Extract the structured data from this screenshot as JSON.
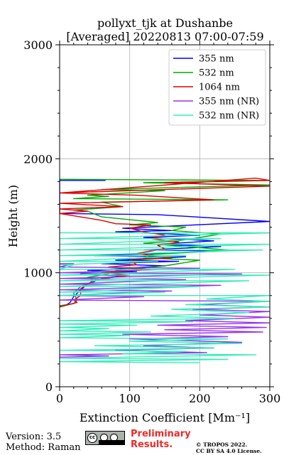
{
  "title": {
    "line1": "pollyxt_tjk at Dushanbe",
    "line2": "[Averaged] 20220813 07:00-07:59"
  },
  "footer": {
    "version": "Version: 3.5",
    "method": "Method: Raman",
    "license_badge": "CC BY SA",
    "preliminary": "Preliminary Results.",
    "copyright": "© TROPOS 2022.",
    "license": "CC BY SA 4.0 License."
  },
  "chart_data": {
    "type": "line",
    "title": "pollyxt_tjk at Dushanbe [Averaged] 20220813 07:00-07:59",
    "xlabel": "Extinction Coefficient [Mm⁻¹]",
    "ylabel": "Height (m)",
    "xlim": [
      0,
      300
    ],
    "ylim": [
      0,
      3000
    ],
    "xticks": [
      "0",
      "100",
      "200",
      "300"
    ],
    "yticks": [
      "0",
      "1000",
      "2000",
      "3000"
    ],
    "grid": true,
    "legend_position": "top-right",
    "series": [
      {
        "name": "355 nm",
        "color": "#0000ff",
        "points": [
          [
            0,
            1810
          ],
          [
            65,
            1810
          ],
          [
            0,
            1810
          ],
          [
            0,
            1520
          ],
          [
            140,
            1510
          ],
          [
            300,
            1450
          ],
          [
            90,
            1390
          ],
          [
            160,
            1370
          ],
          [
            80,
            1360
          ],
          [
            200,
            1330
          ],
          [
            120,
            1310
          ],
          [
            220,
            1280
          ],
          [
            140,
            1250
          ],
          [
            230,
            1230
          ],
          [
            120,
            1200
          ],
          [
            230,
            1190
          ],
          [
            50,
            1150
          ],
          [
            180,
            1140
          ],
          [
            80,
            1110
          ],
          [
            170,
            1100
          ],
          [
            60,
            1080
          ],
          [
            150,
            1060
          ],
          [
            40,
            1020
          ],
          [
            110,
            1010
          ],
          [
            30,
            990
          ],
          [
            90,
            970
          ],
          [
            60,
            950
          ],
          [
            40,
            900
          ],
          [
            30,
            850
          ],
          [
            20,
            790
          ],
          [
            15,
            740
          ],
          [
            10,
            720
          ],
          [
            0,
            710
          ]
        ]
      },
      {
        "name": "532 nm",
        "color": "#00aa00",
        "points": [
          [
            0,
            1820
          ],
          [
            295,
            1810
          ],
          [
            120,
            1790
          ],
          [
            300,
            1770
          ],
          [
            60,
            1730
          ],
          [
            150,
            1720
          ],
          [
            40,
            1680
          ],
          [
            70,
            1670
          ],
          [
            20,
            1650
          ],
          [
            240,
            1640
          ],
          [
            60,
            1620
          ],
          [
            90,
            1580
          ],
          [
            20,
            1550
          ],
          [
            40,
            1540
          ],
          [
            60,
            1490
          ],
          [
            110,
            1460
          ],
          [
            140,
            1440
          ],
          [
            100,
            1420
          ],
          [
            180,
            1400
          ],
          [
            160,
            1370
          ],
          [
            230,
            1340
          ],
          [
            200,
            1310
          ],
          [
            170,
            1280
          ],
          [
            120,
            1260
          ],
          [
            240,
            1200
          ],
          [
            190,
            1180
          ],
          [
            130,
            1160
          ],
          [
            120,
            1130
          ],
          [
            200,
            1110
          ],
          [
            150,
            1060
          ],
          [
            80,
            1020
          ],
          [
            70,
            990
          ],
          [
            40,
            960
          ],
          [
            50,
            930
          ],
          [
            30,
            880
          ],
          [
            20,
            820
          ],
          [
            25,
            760
          ],
          [
            20,
            730
          ],
          [
            0,
            710
          ]
        ]
      },
      {
        "name": "1064 nm",
        "color": "#dd0000",
        "points": [
          [
            0,
            1700
          ],
          [
            280,
            1830
          ],
          [
            300,
            1810
          ],
          [
            150,
            1790
          ],
          [
            300,
            1760
          ],
          [
            0,
            1700
          ],
          [
            110,
            1680
          ],
          [
            220,
            1640
          ],
          [
            0,
            1610
          ],
          [
            90,
            1580
          ],
          [
            0,
            1560
          ],
          [
            40,
            1540
          ],
          [
            0,
            1520
          ],
          [
            60,
            1460
          ],
          [
            80,
            1430
          ],
          [
            130,
            1420
          ],
          [
            100,
            1390
          ],
          [
            120,
            1360
          ],
          [
            150,
            1330
          ],
          [
            130,
            1300
          ],
          [
            170,
            1270
          ],
          [
            140,
            1240
          ],
          [
            150,
            1210
          ],
          [
            110,
            1170
          ],
          [
            160,
            1130
          ],
          [
            100,
            1110
          ],
          [
            110,
            1070
          ],
          [
            70,
            1050
          ],
          [
            130,
            1030
          ],
          [
            60,
            1000
          ],
          [
            100,
            980
          ],
          [
            50,
            940
          ],
          [
            40,
            900
          ],
          [
            30,
            860
          ],
          [
            30,
            800
          ],
          [
            20,
            760
          ],
          [
            25,
            740
          ],
          [
            0,
            700
          ]
        ]
      },
      {
        "name": "355 nm (NR)",
        "color": "#9933ee",
        "points": [
          [
            0,
            1080
          ],
          [
            20,
            1080
          ],
          [
            0,
            1050
          ],
          [
            200,
            1040
          ],
          [
            0,
            1000
          ],
          [
            260,
            990
          ],
          [
            0,
            950
          ],
          [
            180,
            940
          ],
          [
            0,
            900
          ],
          [
            230,
            890
          ],
          [
            0,
            850
          ],
          [
            160,
            840
          ],
          [
            0,
            800
          ],
          [
            120,
            790
          ],
          [
            0,
            760
          ],
          [
            300,
            750
          ],
          [
            200,
            720
          ],
          [
            300,
            700
          ],
          [
            190,
            680
          ],
          [
            300,
            660
          ],
          [
            200,
            630
          ],
          [
            300,
            610
          ],
          [
            180,
            580
          ],
          [
            300,
            560
          ],
          [
            140,
            540
          ],
          [
            295,
            520
          ],
          [
            150,
            500
          ],
          [
            290,
            480
          ],
          [
            90,
            460
          ],
          [
            240,
            440
          ],
          [
            100,
            420
          ],
          [
            260,
            390
          ],
          [
            120,
            360
          ],
          [
            220,
            340
          ],
          [
            80,
            320
          ],
          [
            210,
            300
          ],
          [
            0,
            280
          ],
          [
            70,
            270
          ],
          [
            0,
            260
          ]
        ]
      },
      {
        "name": "532 nm (NR)",
        "color": "#33eebb",
        "points": [
          [
            0,
            1350
          ],
          [
            300,
            1350
          ],
          [
            0,
            1300
          ],
          [
            230,
            1300
          ],
          [
            0,
            1250
          ],
          [
            300,
            1250
          ],
          [
            0,
            1200
          ],
          [
            290,
            1200
          ],
          [
            0,
            1150
          ],
          [
            180,
            1150
          ],
          [
            0,
            1100
          ],
          [
            140,
            1100
          ],
          [
            0,
            1070
          ],
          [
            20,
            1070
          ],
          [
            0,
            1030
          ],
          [
            250,
            1030
          ],
          [
            0,
            980
          ],
          [
            300,
            980
          ],
          [
            0,
            930
          ],
          [
            270,
            930
          ],
          [
            0,
            880
          ],
          [
            200,
            880
          ],
          [
            0,
            830
          ],
          [
            150,
            830
          ],
          [
            0,
            800
          ],
          [
            300,
            800
          ],
          [
            210,
            770
          ],
          [
            300,
            750
          ],
          [
            180,
            720
          ],
          [
            300,
            700
          ],
          [
            160,
            680
          ],
          [
            270,
            650
          ],
          [
            130,
            620
          ],
          [
            250,
            600
          ],
          [
            0,
            580
          ],
          [
            190,
            570
          ],
          [
            0,
            550
          ],
          [
            110,
            540
          ],
          [
            0,
            520
          ],
          [
            70,
            510
          ],
          [
            0,
            490
          ],
          [
            130,
            480
          ],
          [
            0,
            460
          ],
          [
            100,
            450
          ],
          [
            0,
            430
          ],
          [
            240,
            420
          ],
          [
            100,
            400
          ],
          [
            260,
            380
          ],
          [
            50,
            360
          ],
          [
            220,
            340
          ],
          [
            0,
            320
          ],
          [
            180,
            310
          ],
          [
            90,
            290
          ],
          [
            280,
            280
          ],
          [
            0,
            250
          ],
          [
            240,
            240
          ],
          [
            0,
            220
          ],
          [
            200,
            210
          ]
        ]
      }
    ]
  }
}
